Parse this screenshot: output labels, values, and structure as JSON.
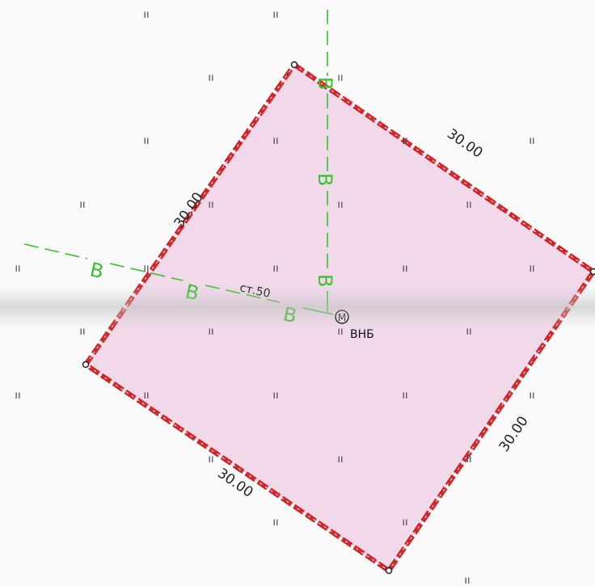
{
  "map": {
    "pipe_code": "В",
    "meadow_symbol": "ıı",
    "pipe_label": "ст.50",
    "well_letter": "М",
    "well_label": "ВНБ",
    "dimensions": {
      "top_right": "30.00",
      "top_left": "30.00",
      "bottom_right": "30.00",
      "bottom_left": "30.00"
    },
    "colors": {
      "plot_fill": "#f1d9ea",
      "boundary": "#d0272a",
      "pipe": "#3cbf2f"
    }
  }
}
